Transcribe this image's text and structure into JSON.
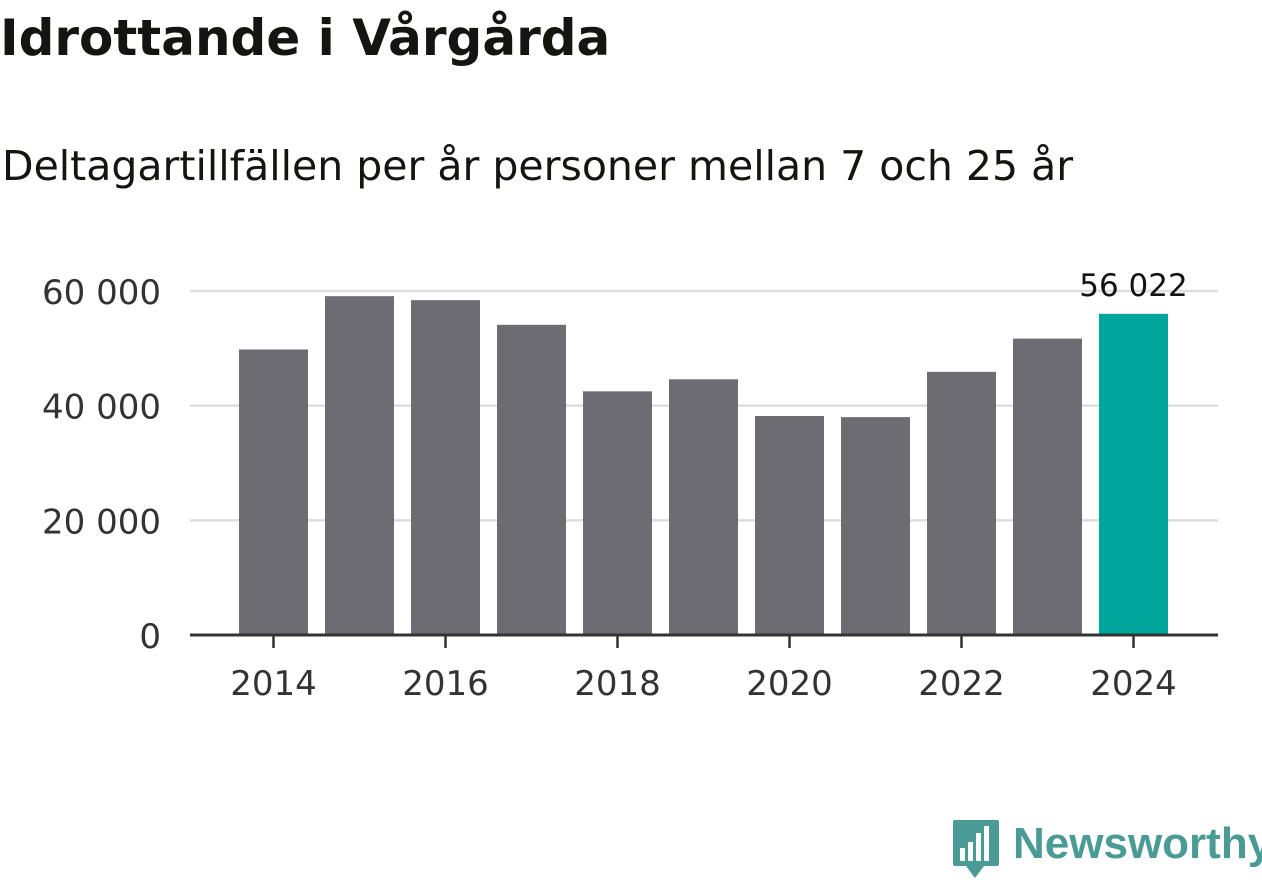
{
  "header": {
    "title": "Idrottande i Vårgårda",
    "subtitle": "Deltagartillfällen per år personer mellan 7 och 25 år"
  },
  "branding": {
    "name": "Newsworthy",
    "icon": "newsworthy-bar-chart-icon",
    "color": "#4a9b95"
  },
  "chart_data": {
    "type": "bar",
    "title": "Idrottande i Vårgårda",
    "subtitle": "Deltagartillfällen per år personer mellan 7 och 25 år",
    "xlabel": "",
    "ylabel": "",
    "categories": [
      "2014",
      "2015",
      "2016",
      "2017",
      "2018",
      "2019",
      "2020",
      "2021",
      "2022",
      "2023",
      "2024"
    ],
    "values": [
      49800,
      59100,
      58400,
      54100,
      42500,
      44600,
      38200,
      38000,
      45900,
      51700,
      56022
    ],
    "x_tick_labels": [
      "2014",
      "2016",
      "2018",
      "2020",
      "2022",
      "2024"
    ],
    "y_ticks": [
      0,
      20000,
      40000,
      60000
    ],
    "y_tick_labels": [
      "0",
      "20 000",
      "40 000",
      "60 000"
    ],
    "ylim": [
      0,
      60000
    ],
    "grid": true,
    "highlight_index": 10,
    "highlight_label": "56 022",
    "bar_color": "#6d6c73",
    "highlight_color": "#00a69c",
    "grid_color": "#dedede",
    "axis_color": "#333333"
  }
}
